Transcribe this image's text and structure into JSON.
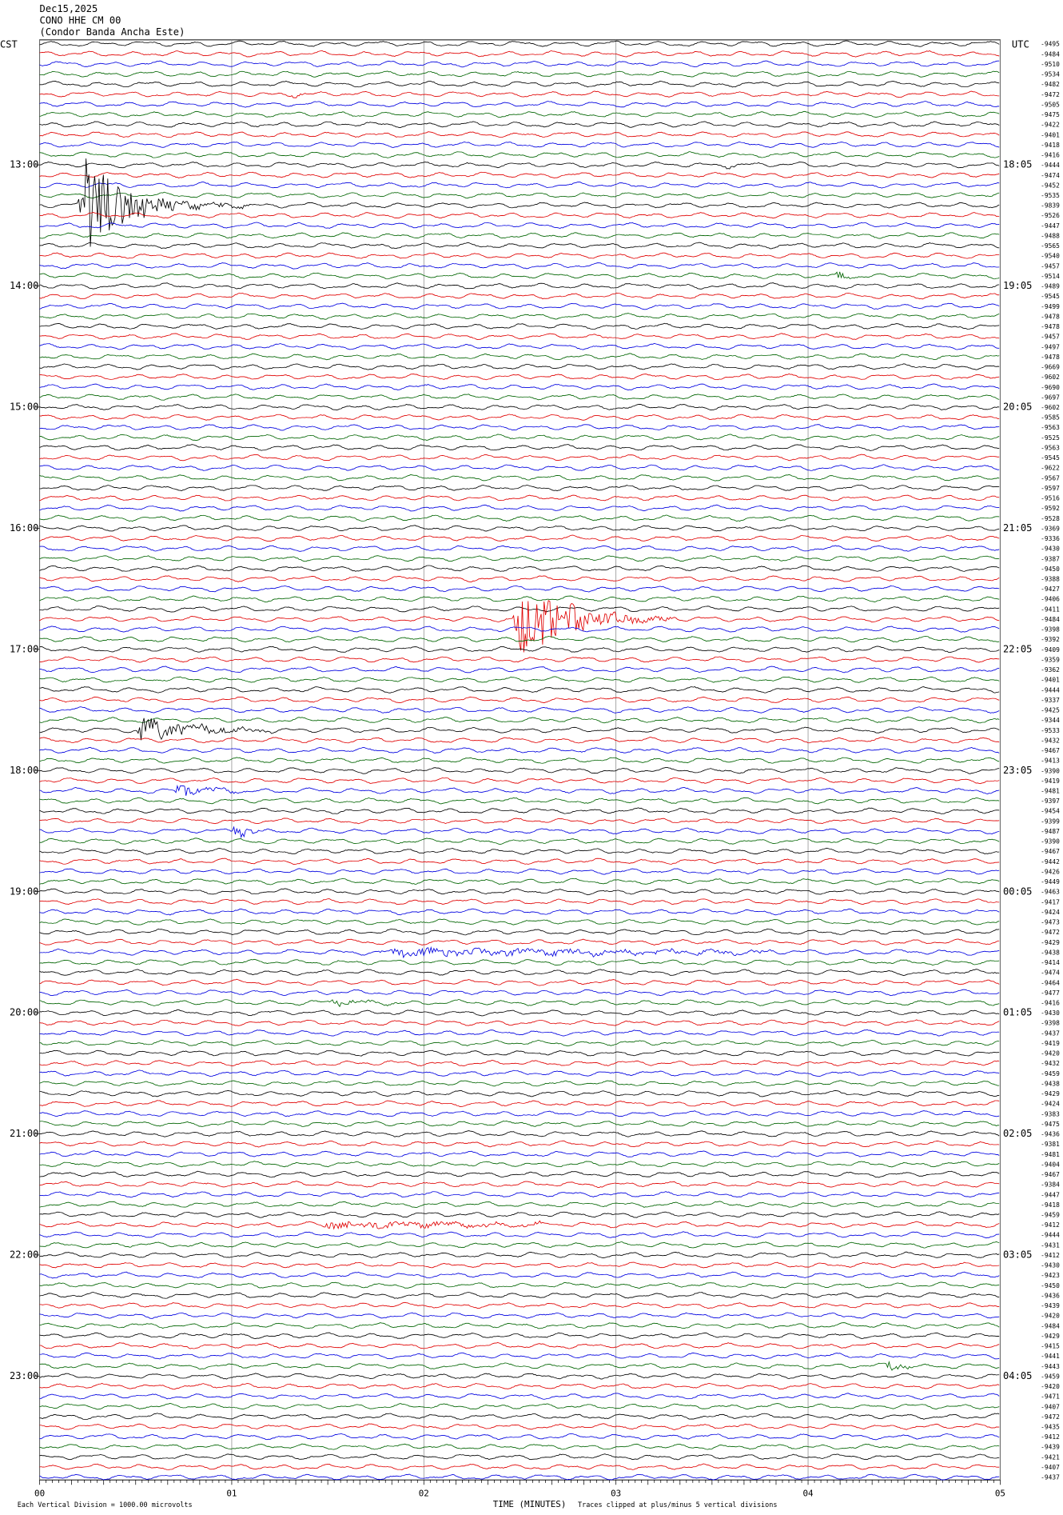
{
  "header": {
    "date": "Dec15,2025",
    "station": "CONO HHE CM 00",
    "station_name": "(Condor Banda Ancha Este)"
  },
  "left_timezone": "CST",
  "right_timezone": "UTC",
  "left_time_labels": [
    "13:00",
    "14:00",
    "15:00",
    "16:00",
    "17:00",
    "18:00",
    "19:00",
    "20:00",
    "21:00",
    "22:00",
    "23:00"
  ],
  "right_time_labels": [
    "18:05",
    "19:05",
    "20:05",
    "21:05",
    "22:05",
    "23:05",
    "00:05",
    "01:05",
    "02:05",
    "03:05",
    "04:05"
  ],
  "trace_labels": [
    "-9495",
    "-9484",
    "-9510",
    "-9534",
    "-9482",
    "-9472",
    "-9505",
    "-9475",
    "-9422",
    "-9401",
    "-9418",
    "-9416",
    "-9444",
    "-9474",
    "-9452",
    "-9535",
    "-9839",
    "-9526",
    "-9447",
    "-9488",
    "-9565",
    "-9540",
    "-9457",
    "-9514",
    "-9489",
    "-9545",
    "-9499",
    "-9478",
    "-9478",
    "-9457",
    "-9497",
    "-9478",
    "-9669",
    "-9602",
    "-9690",
    "-9697",
    "-9602",
    "-9585",
    "-9563",
    "-9525",
    "-9563",
    "-9545",
    "-9622",
    "-9567",
    "-9597",
    "-9516",
    "-9592",
    "-9528",
    "-9369",
    "-9336",
    "-9430",
    "-9387",
    "-9450",
    "-9388",
    "-9427",
    "-9406",
    "-9411",
    "-9484",
    "-9398",
    "-9392",
    "-9409",
    "-9359",
    "-9362",
    "-9401",
    "-9444",
    "-9337",
    "-9425",
    "-9344",
    "-9533",
    "-9432",
    "-9467",
    "-9413",
    "-9390",
    "-9419",
    "-9481",
    "-9397",
    "-9454",
    "-9399",
    "-9487",
    "-9390",
    "-9467",
    "-9442",
    "-9426",
    "-9449",
    "-9463",
    "-9417",
    "-9424",
    "-9473",
    "-9472",
    "-9429",
    "-9438",
    "-9414",
    "-9474",
    "-9464",
    "-9477",
    "-9416",
    "-9430",
    "-9398",
    "-9437",
    "-9419",
    "-9420",
    "-9432",
    "-9459",
    "-9438",
    "-9429",
    "-9424",
    "-9383",
    "-9475",
    "-9436",
    "-9381",
    "-9481",
    "-9404",
    "-9467",
    "-9384",
    "-9447",
    "-9418",
    "-9459",
    "-9412",
    "-9444",
    "-9431",
    "-9412",
    "-9430",
    "-9423",
    "-9450",
    "-9436",
    "-9439",
    "-9420",
    "-9484",
    "-9429",
    "-9415",
    "-9441",
    "-9443",
    "-9459",
    "-9420",
    "-9471",
    "-9407",
    "-9472",
    "-9435",
    "-9412",
    "-9439",
    "-9421",
    "-9407",
    "-9437"
  ],
  "x_axis_labels": [
    "00",
    "01",
    "02",
    "03",
    "04",
    "05"
  ],
  "x_axis_title": "TIME (MINUTES)",
  "footer_left": "Each Vertical Division = 1000.00 microvolts",
  "footer_right": "Traces clipped at plus/minus 5 vertical divisions"
}
